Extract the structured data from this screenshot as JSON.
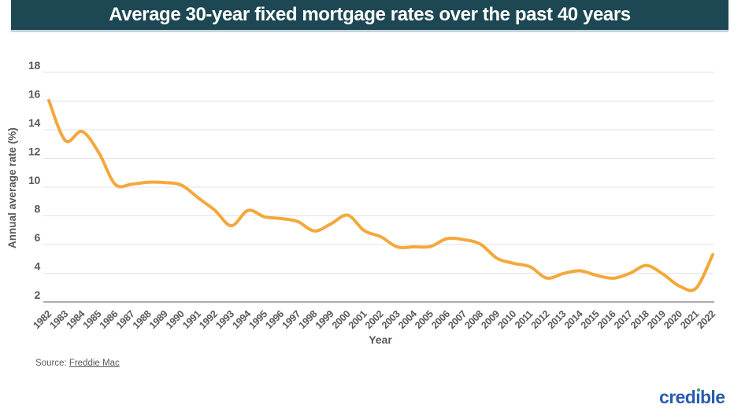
{
  "header": {
    "title": "Average 30-year fixed mortgage rates over the past 40 years"
  },
  "chart_data": {
    "type": "line",
    "title": "Average 30-year fixed mortgage rates over the past 40 years",
    "xlabel": "Year",
    "ylabel": "Annual average rate (%)",
    "x": [
      1982,
      1983,
      1984,
      1985,
      1986,
      1987,
      1988,
      1989,
      1990,
      1991,
      1992,
      1993,
      1994,
      1995,
      1996,
      1997,
      1998,
      1999,
      2000,
      2001,
      2002,
      2003,
      2004,
      2005,
      2006,
      2007,
      2008,
      2009,
      2010,
      2011,
      2012,
      2013,
      2014,
      2015,
      2016,
      2017,
      2018,
      2019,
      2020,
      2021,
      2022
    ],
    "values": [
      16.04,
      13.24,
      13.88,
      12.43,
      10.19,
      10.21,
      10.34,
      10.32,
      10.13,
      9.25,
      8.39,
      7.31,
      8.38,
      7.93,
      7.81,
      7.6,
      6.94,
      7.44,
      8.05,
      6.97,
      6.54,
      5.83,
      5.84,
      5.87,
      6.41,
      6.34,
      6.03,
      5.04,
      4.69,
      4.45,
      3.66,
      3.98,
      4.17,
      3.85,
      3.65,
      3.99,
      4.54,
      3.94,
      3.1,
      2.96,
      5.3
    ],
    "ylim": [
      2,
      18
    ],
    "yticks": [
      2,
      4,
      6,
      8,
      10,
      12,
      14,
      16,
      18
    ],
    "grid": true,
    "legend": "none",
    "line_style": "smooth"
  },
  "footer": {
    "source_prefix": "Source: ",
    "source_link": "Freddie Mac",
    "logo": {
      "text": "credible",
      "pre": "cred",
      "i_char": "ı",
      "post": "ble"
    }
  },
  "colors": {
    "header_bg": "#1D4752",
    "header_border": "#C5D5DA",
    "title_text": "#FFFFFF",
    "axis_label": "#58595B",
    "gridline": "#E3E3E3",
    "axis_line": "#ACACAC",
    "line": "#F4A83C",
    "logo_blue": "#2B5CAD",
    "logo_green": "#2E9E6B",
    "source_text": "#595959"
  }
}
